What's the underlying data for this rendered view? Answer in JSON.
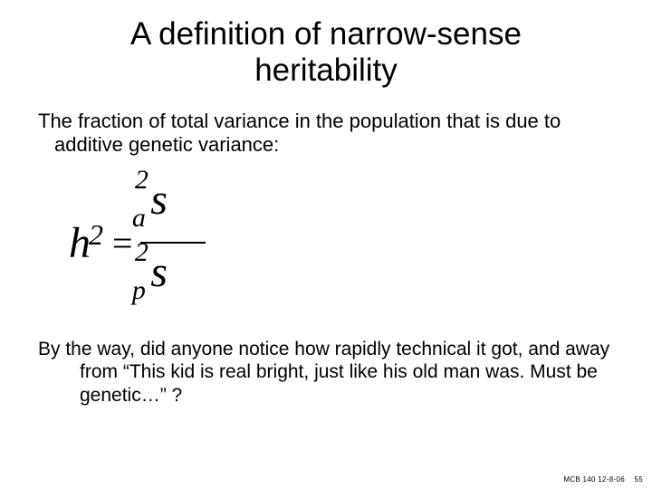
{
  "title": "A definition of narrow-sense heritability",
  "definition": "The fraction of total variance in the population that is due to additive genetic variance:",
  "equation": {
    "lhs_base": "h",
    "lhs_exp": "2",
    "equals": "=",
    "num_base": "s",
    "num_exp": "2",
    "num_sub": "a",
    "den_base": "s",
    "den_exp": "2",
    "den_sub": "p"
  },
  "aside": "By the way, did anyone notice how rapidly technical it got, and away from “This kid is real bright, just like his old man was. Must be genetic…” ?",
  "footer_course": "MCB 140 12-8-06",
  "footer_page": "55",
  "colors": {
    "background": "#ffffff",
    "text": "#000000"
  },
  "fonts": {
    "body": "Arial",
    "equation": "Times New Roman Italic",
    "title_size_pt": 35,
    "body_size_pt": 22,
    "aside_size_pt": 21,
    "footer_size_pt": 8
  }
}
